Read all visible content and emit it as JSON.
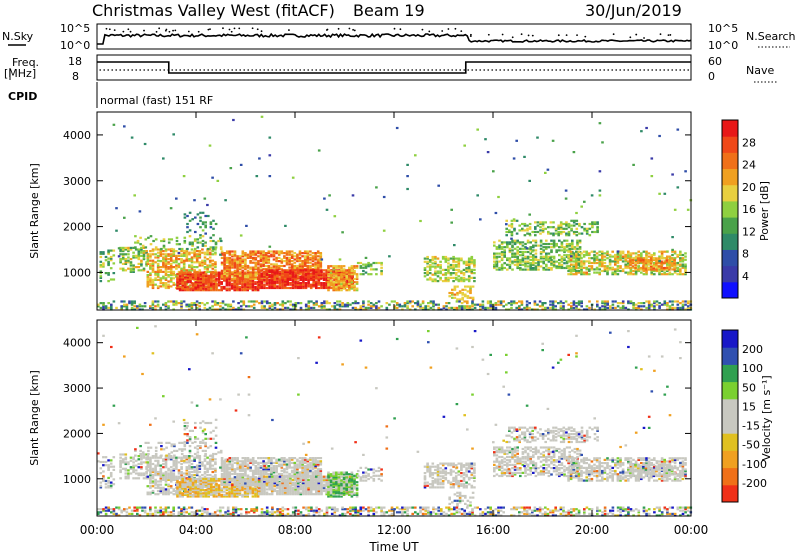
{
  "header": {
    "title": "Christmas Valley West (fitACF)",
    "beam": "Beam 19",
    "date": "30/Jun/2019"
  },
  "aux": {
    "nsky_label": "N.Sky",
    "nsky_ticks": [
      "10^5",
      "10^0"
    ],
    "nsearch_label": "N.Search",
    "nsearch_ticks": [
      "10^5",
      "10^0"
    ],
    "freq_label": "Freq.",
    "freq_unit": "[MHz]",
    "freq_ticks": [
      "18",
      "8"
    ],
    "nave_label": "Nave",
    "nave_ticks": [
      "60",
      "0"
    ],
    "cpid_label": "CPID",
    "cpid_value": "normal (fast) 151 RF"
  },
  "colors": {
    "power": [
      "#1010ff",
      "#3a3aa8",
      "#2f4ea8",
      "#2f8a68",
      "#4aa24a",
      "#8fd040",
      "#e8d040",
      "#f0a020",
      "#f07018",
      "#f04818",
      "#e81818"
    ],
    "velocity_pos": [
      "#1818c8",
      "#3050b0",
      "#30a050",
      "#7ad030"
    ],
    "velocity_zero": "#c8c8c0",
    "velocity_neg": [
      "#e0c020",
      "#f0a020",
      "#f07018",
      "#f03018"
    ]
  },
  "chart_data": [
    {
      "type": "heatmap",
      "name": "power",
      "ylabel": "Slant Range [km]",
      "yticks": [
        "4000",
        "3000",
        "2000",
        "1000"
      ],
      "ylim": [
        180,
        4500
      ],
      "colorbar_label": "Power [dB]",
      "colorbar_ticks": [
        "28",
        "24",
        "20",
        "16",
        "12",
        "8",
        "4"
      ],
      "clim": [
        0,
        30
      ]
    },
    {
      "type": "heatmap",
      "name": "velocity",
      "ylabel": "Slant Range [km]",
      "yticks": [
        "4000",
        "3000",
        "2000",
        "1000"
      ],
      "ylim": [
        180,
        4500
      ],
      "colorbar_label": "Velocity [m s⁻¹]",
      "colorbar_ticks": [
        "200",
        "100",
        "50",
        "15",
        "-15",
        "-50",
        "-100",
        "-200"
      ],
      "clim": [
        -250,
        250
      ]
    }
  ],
  "time_axis": {
    "xlabel": "Time UT",
    "xticks": [
      "00:00",
      "04:00",
      "08:00",
      "12:00",
      "16:00",
      "20:00",
      "00:00"
    ],
    "xlim_hours": [
      0,
      24
    ]
  }
}
